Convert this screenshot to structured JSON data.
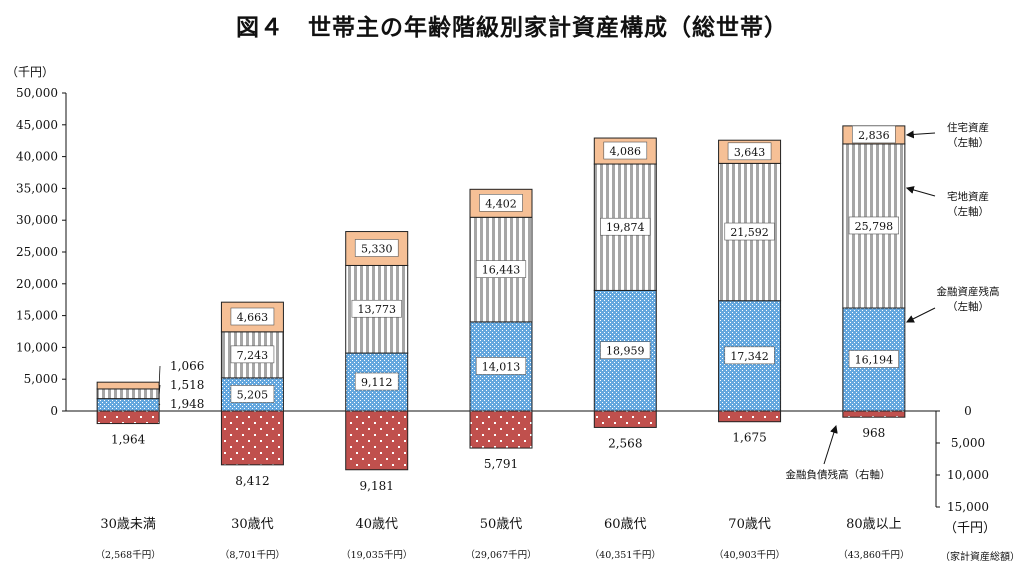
{
  "title": "図４　世帯主の年齢階級別家計資産構成（総世帯）",
  "left_unit": "（千円）",
  "right_unit": "（千円）",
  "total_caption": "（家計資産総額）",
  "colors": {
    "housing": "#f6c096",
    "land": "#b3b3b3",
    "financial": "#64a7de",
    "debt": "#c0504d",
    "border": "#222222"
  },
  "chart_data": {
    "type": "bar",
    "stacked": true,
    "categories": [
      "30歳未満",
      "30歳代",
      "40歳代",
      "50歳代",
      "60歳代",
      "70歳代",
      "80歳以上"
    ],
    "series": [
      {
        "name": "金融資産残高\n（左軸）",
        "key": "financial",
        "values": [
          1948,
          5205,
          9112,
          14013,
          18959,
          17342,
          16194
        ],
        "labels": [
          "1,948",
          "5,205",
          "9,112",
          "14,013",
          "18,959",
          "17,342",
          "16,194"
        ]
      },
      {
        "name": "宅地資産\n（左軸）",
        "key": "land",
        "values": [
          1518,
          7243,
          13773,
          16443,
          19874,
          21592,
          25798
        ],
        "labels": [
          "1,518",
          "7,243",
          "13,773",
          "16,443",
          "19,874",
          "21,592",
          "25,798"
        ]
      },
      {
        "name": "住宅資産\n（左軸）",
        "key": "housing",
        "values": [
          1066,
          4663,
          5330,
          4402,
          4086,
          3643,
          2836
        ],
        "labels": [
          "1,066",
          "4,663",
          "5,330",
          "4,402",
          "4,086",
          "3,643",
          "2,836"
        ]
      },
      {
        "name": "金融負債残高（右軸）",
        "key": "debt",
        "values": [
          1964,
          8412,
          9181,
          5791,
          2568,
          1675,
          968
        ],
        "labels": [
          "1,964",
          "8,412",
          "9,181",
          "5,791",
          "2,568",
          "1,675",
          "968"
        ]
      }
    ],
    "totals": [
      "（2,568千円）",
      "（8,701千円）",
      "（19,035千円）",
      "（29,067千円）",
      "（40,351千円）",
      "（40,903千円）",
      "（43,860千円）"
    ],
    "y_left": {
      "ylim": [
        0,
        50000
      ],
      "ticks": [
        "0",
        "5,000",
        "10,000",
        "15,000",
        "20,000",
        "25,000",
        "30,000",
        "35,000",
        "40,000",
        "45,000",
        "50,000"
      ]
    },
    "y_right": {
      "ylim": [
        0,
        15000
      ],
      "inverted": true,
      "ticks": [
        "0",
        "5,000",
        "10,000",
        "15,000"
      ]
    },
    "grid": false,
    "legend": "right"
  }
}
